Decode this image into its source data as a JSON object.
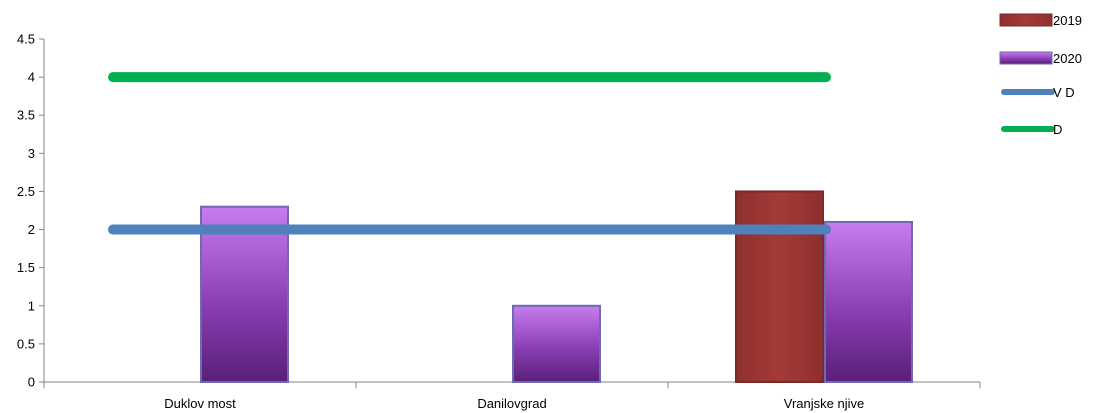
{
  "chart_data": {
    "type": "bar",
    "categories": [
      "Duklov most",
      "Danilovgrad",
      "Vranjske njive"
    ],
    "series": [
      {
        "name": "2019",
        "kind": "bar",
        "values": [
          null,
          null,
          2.5
        ],
        "color": "#943634"
      },
      {
        "name": "2020",
        "kind": "bar",
        "values": [
          2.3,
          1.0,
          2.1
        ],
        "color": "#9b4fc4"
      },
      {
        "name": "V D",
        "kind": "line",
        "values": [
          2,
          2,
          2
        ],
        "color": "#4f81bd"
      },
      {
        "name": "D",
        "kind": "line",
        "values": [
          4,
          4,
          4
        ],
        "color": "#00b050"
      }
    ],
    "yticks": [
      "0",
      "0.5",
      "1",
      "1.5",
      "2",
      "2.5",
      "3",
      "3.5",
      "4",
      "4.5"
    ],
    "ylim": [
      0,
      4.5
    ],
    "title": "",
    "xlabel": "",
    "ylabel": "",
    "grid": false,
    "legend_position": "right"
  }
}
